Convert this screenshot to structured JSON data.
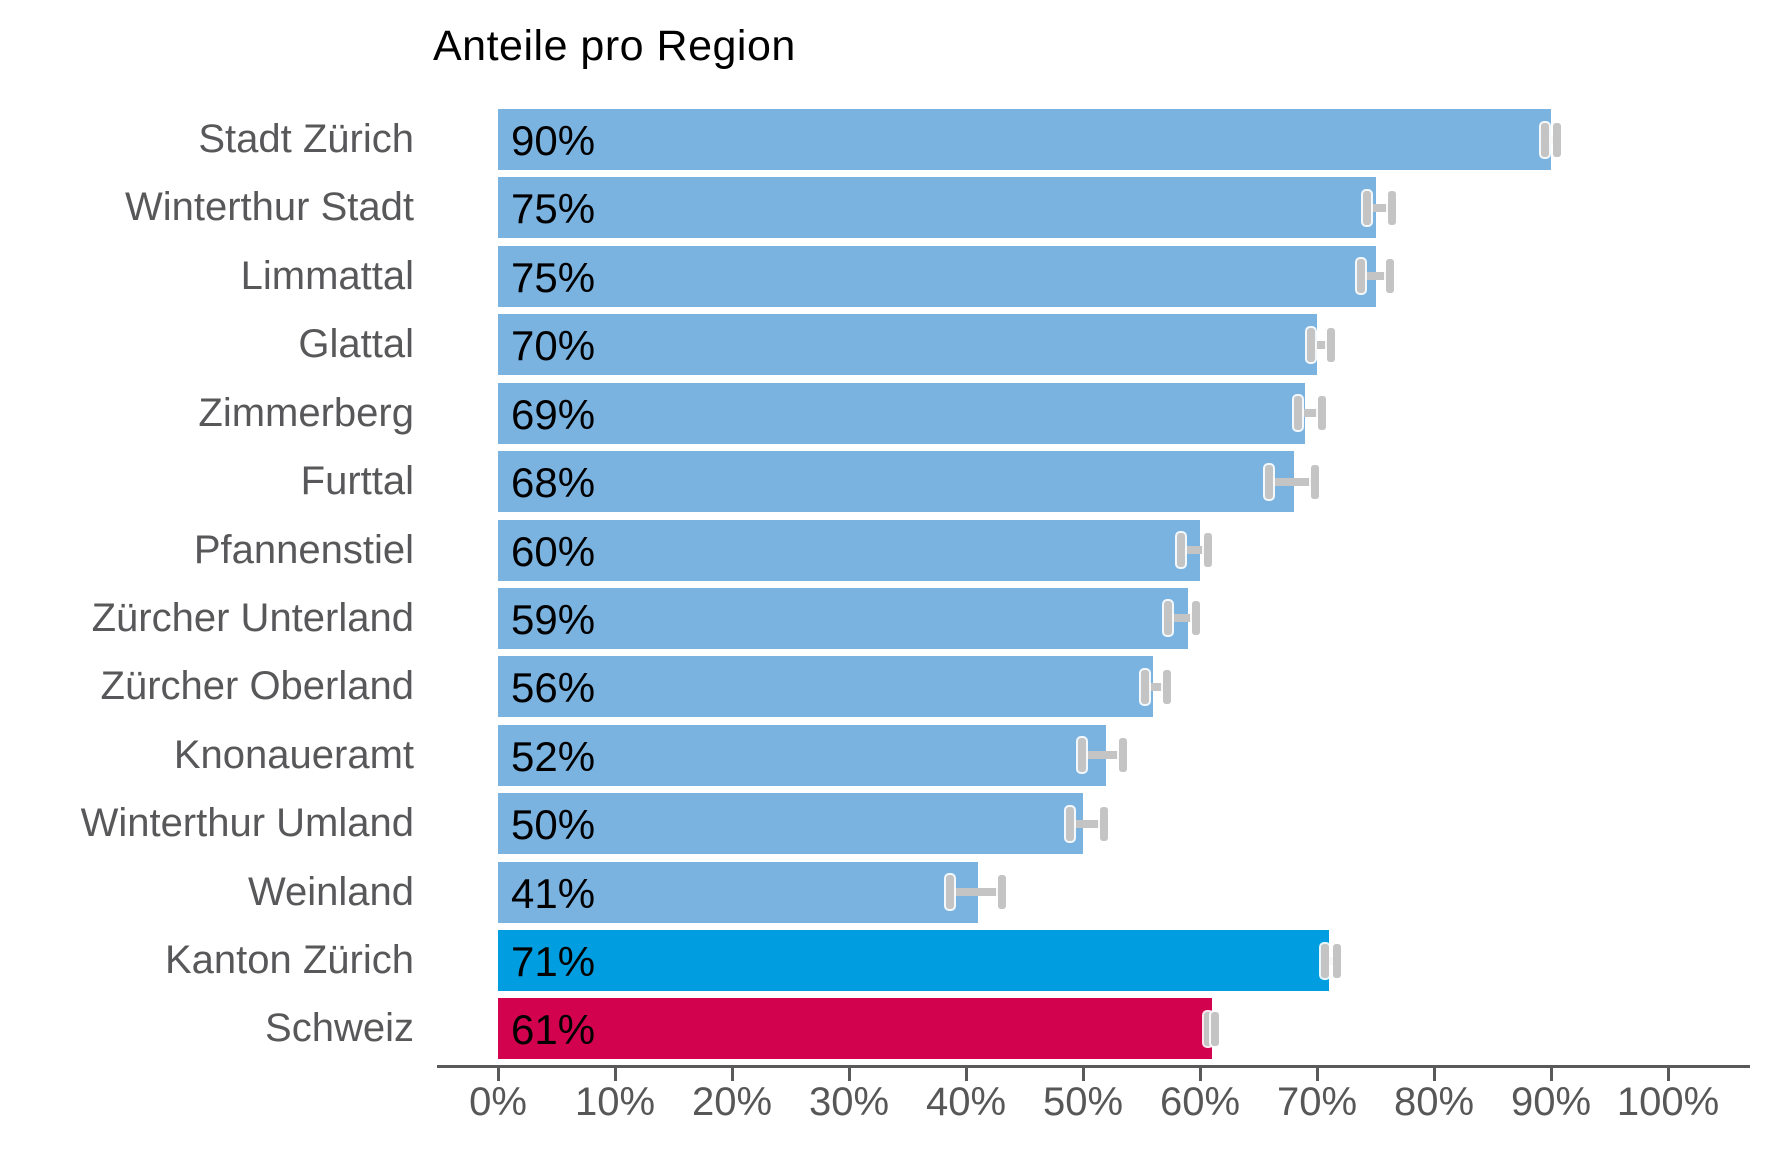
{
  "page": {
    "background": "#ffffff"
  },
  "chart_data": {
    "type": "bar",
    "orientation": "horizontal",
    "title": "Anteile pro Region",
    "xlabel": "",
    "ylabel": "",
    "xlim": [
      0,
      100
    ],
    "x_tick_labels": [
      "0%",
      "10%",
      "20%",
      "30%",
      "40%",
      "50%",
      "60%",
      "70%",
      "80%",
      "90%",
      "100%"
    ],
    "grid": false,
    "legend": false,
    "bars": [
      {
        "label": "Stadt Zürich",
        "value": 90,
        "value_label": "90%",
        "error_low": 89.5,
        "error_high": 90.5,
        "group": "region"
      },
      {
        "label": "Winterthur Stadt",
        "value": 75,
        "value_label": "75%",
        "error_low": 74.3,
        "error_high": 76.4,
        "group": "region"
      },
      {
        "label": "Limmattal",
        "value": 75,
        "value_label": "75%",
        "error_low": 73.8,
        "error_high": 76.2,
        "group": "region"
      },
      {
        "label": "Glattal",
        "value": 70,
        "value_label": "70%",
        "error_low": 69.5,
        "error_high": 71.2,
        "group": "region"
      },
      {
        "label": "Zimmerberg",
        "value": 69,
        "value_label": "69%",
        "error_low": 68.4,
        "error_high": 70.4,
        "group": "region"
      },
      {
        "label": "Furttal",
        "value": 68,
        "value_label": "68%",
        "error_low": 65.9,
        "error_high": 69.8,
        "group": "region"
      },
      {
        "label": "Pfannenstiel",
        "value": 60,
        "value_label": "60%",
        "error_low": 58.4,
        "error_high": 60.7,
        "group": "region"
      },
      {
        "label": "Zürcher Unterland",
        "value": 59,
        "value_label": "59%",
        "error_low": 57.3,
        "error_high": 59.7,
        "group": "region"
      },
      {
        "label": "Zürcher Oberland",
        "value": 56,
        "value_label": "56%",
        "error_low": 55.3,
        "error_high": 57.2,
        "group": "region"
      },
      {
        "label": "Knonaueramt",
        "value": 52,
        "value_label": "52%",
        "error_low": 49.9,
        "error_high": 53.4,
        "group": "region"
      },
      {
        "label": "Winterthur Umland",
        "value": 50,
        "value_label": "50%",
        "error_low": 48.9,
        "error_high": 51.8,
        "group": "region"
      },
      {
        "label": "Weinland",
        "value": 41,
        "value_label": "41%",
        "error_low": 38.6,
        "error_high": 43.1,
        "group": "region"
      },
      {
        "label": "Kanton Zürich",
        "value": 71,
        "value_label": "71%",
        "error_low": 70.7,
        "error_high": 71.7,
        "group": "canton"
      },
      {
        "label": "Schweiz",
        "value": 61,
        "value_label": "61%",
        "error_low": 60.7,
        "error_high": 61.3,
        "group": "country"
      }
    ],
    "group_colors": {
      "region": "#7AB2E0",
      "canton": "#009EE0",
      "country": "#D2024F"
    },
    "error_bar_color": "#C4C4C4",
    "axis_color": "#595959",
    "category_label_color": "#58585A",
    "value_label_color": "#000000",
    "title_color": "#000000"
  }
}
